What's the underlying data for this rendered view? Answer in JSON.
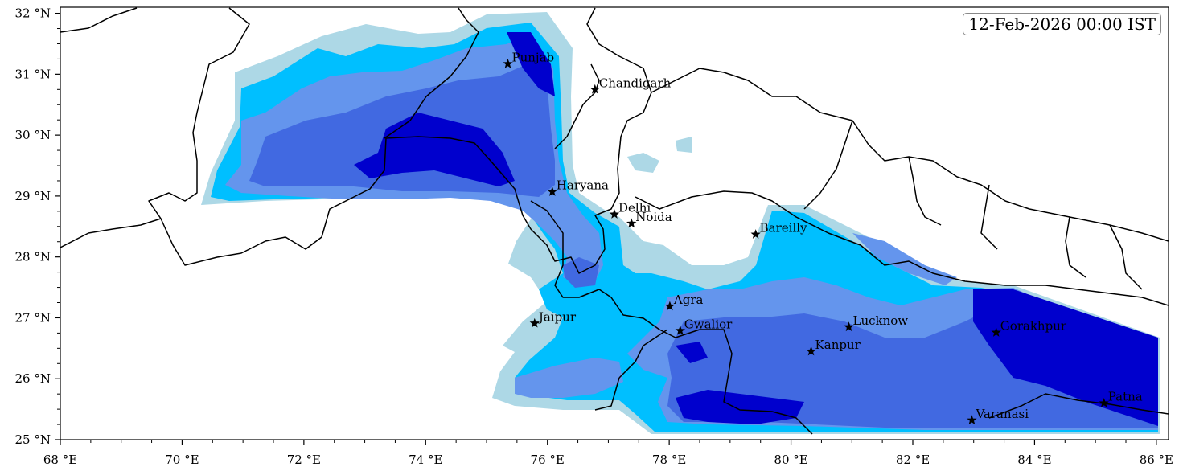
{
  "timestamp": "12-Feb-2026 00:00 IST",
  "map": {
    "lon_range": [
      68,
      86.2
    ],
    "lat_range": [
      25,
      32.1
    ],
    "x_ticks": [
      {
        "lon": 68,
        "label": "68 °E"
      },
      {
        "lon": 70,
        "label": "70 °E"
      },
      {
        "lon": 72,
        "label": "72 °E"
      },
      {
        "lon": 74,
        "label": "74 °E"
      },
      {
        "lon": 76,
        "label": "76 °E"
      },
      {
        "lon": 78,
        "label": "78 °E"
      },
      {
        "lon": 80,
        "label": "80 °E"
      },
      {
        "lon": 82,
        "label": "82 °E"
      },
      {
        "lon": 84,
        "label": "84 °E"
      },
      {
        "lon": 86,
        "label": "86 °E"
      }
    ],
    "y_ticks": [
      {
        "lat": 32,
        "label": "32 °N"
      },
      {
        "lat": 31,
        "label": "31 °N"
      },
      {
        "lat": 30,
        "label": "30 °N"
      },
      {
        "lat": 29,
        "label": "29 °N"
      },
      {
        "lat": 28,
        "label": "28 °N"
      },
      {
        "lat": 27,
        "label": "27 °N"
      },
      {
        "lat": 26,
        "label": "26 °N"
      },
      {
        "lat": 25,
        "label": "25 °N"
      }
    ],
    "contour_colors": [
      "#add8e6",
      "#00bfff",
      "#6495ed",
      "#4169e1",
      "#0000cd"
    ],
    "border_color": "#000000",
    "cities": [
      {
        "name": "Punjab",
        "lon": 75.35,
        "lat": 31.17
      },
      {
        "name": "Chandigarh",
        "lon": 76.78,
        "lat": 30.75
      },
      {
        "name": "Haryana",
        "lon": 76.08,
        "lat": 29.07
      },
      {
        "name": "Delhi",
        "lon": 77.1,
        "lat": 28.7
      },
      {
        "name": "Noida",
        "lon": 77.38,
        "lat": 28.55
      },
      {
        "name": "Bareilly",
        "lon": 79.42,
        "lat": 28.37
      },
      {
        "name": "Agra",
        "lon": 78.01,
        "lat": 27.19
      },
      {
        "name": "Jaipur",
        "lon": 75.79,
        "lat": 26.91
      },
      {
        "name": "Gwalior",
        "lon": 78.18,
        "lat": 26.79
      },
      {
        "name": "Lucknow",
        "lon": 80.95,
        "lat": 26.85
      },
      {
        "name": "Gorakhpur",
        "lon": 83.37,
        "lat": 26.76
      },
      {
        "name": "Kanpur",
        "lon": 80.33,
        "lat": 26.45
      },
      {
        "name": "Patna",
        "lon": 85.14,
        "lat": 25.6
      },
      {
        "name": "Varanasi",
        "lon": 82.97,
        "lat": 25.32
      }
    ]
  }
}
